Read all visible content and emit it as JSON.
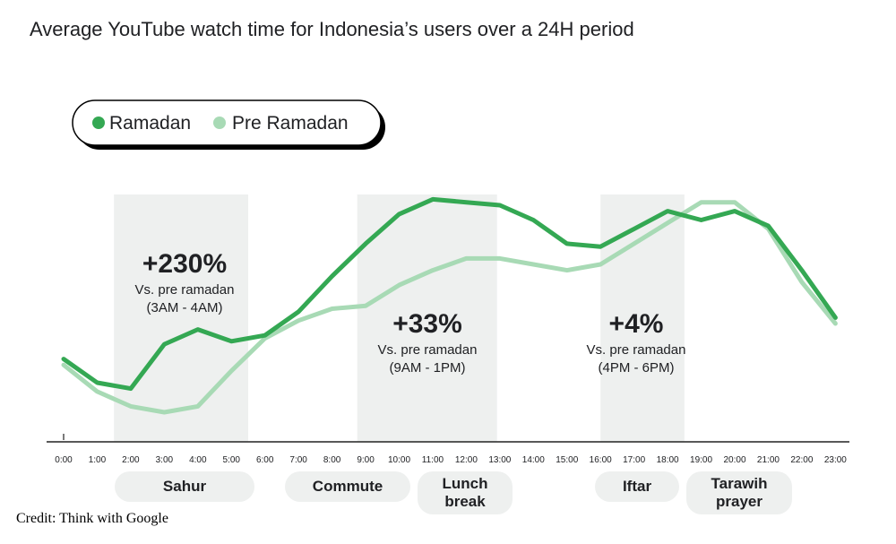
{
  "chart_data": {
    "type": "line",
    "title": "Average YouTube watch time for Indonesia’s users over a 24H period",
    "x": [
      "0:00",
      "1:00",
      "2:00",
      "3:00",
      "4:00",
      "5:00",
      "6:00",
      "7:00",
      "8:00",
      "9:00",
      "10:00",
      "11:00",
      "12:00",
      "13:00",
      "14:00",
      "15:00",
      "16:00",
      "17:00",
      "18:00",
      "19:00",
      "20:00",
      "21:00",
      "22:00",
      "23:00"
    ],
    "series": [
      {
        "name": "Ramadan",
        "color": "#34a853",
        "values": [
          28,
          20,
          18,
          33,
          38,
          34,
          36,
          44,
          56,
          67,
          77,
          82,
          81,
          80,
          75,
          67,
          66,
          72,
          78,
          75,
          78,
          73,
          58,
          42
        ]
      },
      {
        "name": "Pre Ramadan",
        "color": "#a8dab5",
        "values": [
          26,
          17,
          12,
          10,
          12,
          24,
          35,
          41,
          45,
          46,
          53,
          58,
          62,
          62,
          60,
          58,
          60,
          67,
          74,
          81,
          81,
          72,
          54,
          40
        ]
      }
    ],
    "ylim": [
      0,
      100
    ],
    "highlights": [
      {
        "from": "1:30",
        "to": "5:30",
        "stat": "+230%",
        "line1": "Vs. pre ramadan",
        "line2": "(3AM - 4AM)",
        "period_label": "Sahur"
      },
      {
        "from": "8:45",
        "to": "12:55",
        "stat": "+33%",
        "line1": "Vs. pre ramadan",
        "line2": "(9AM - 1PM)",
        "period_label": ""
      },
      {
        "from": "16:00",
        "to": "18:30",
        "stat": "+4%",
        "line1": "Vs. pre ramadan",
        "line2": "(4PM - 6PM)",
        "period_label": ""
      }
    ],
    "period_labels": [
      {
        "lines": [
          "Sahur"
        ]
      },
      {
        "lines": [
          "Commute"
        ]
      },
      {
        "lines": [
          "Lunch",
          "break"
        ]
      },
      {
        "lines": [
          "Iftar"
        ]
      },
      {
        "lines": [
          "Tarawih",
          "prayer"
        ]
      }
    ],
    "legend_position": "top-left",
    "grid": false
  },
  "credit": "Credit: Think with Google"
}
